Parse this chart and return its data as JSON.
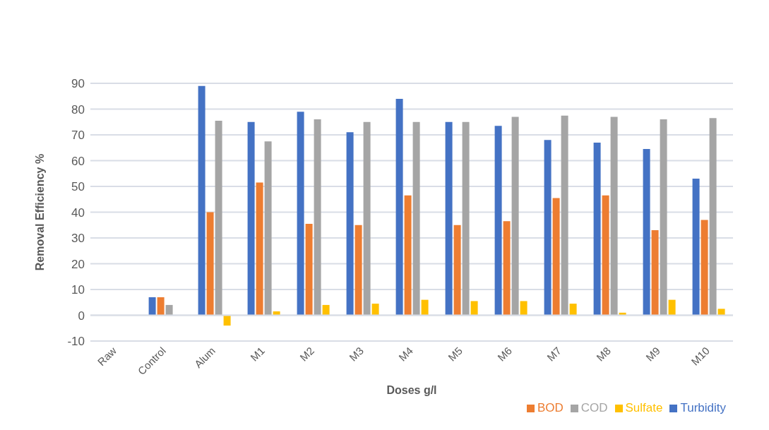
{
  "chart_data": {
    "type": "bar",
    "xlabel": "Doses g/l",
    "ylabel": "Removal Efficiency %",
    "categories": [
      "Raw",
      "Control",
      "Alum",
      "M1",
      "M2",
      "M3",
      "M4",
      "M5",
      "M6",
      "M7",
      "M8",
      "M9",
      "M10"
    ],
    "series": [
      {
        "name": "Turbidity",
        "color": "#4472c4",
        "values": [
          0,
          7,
          89,
          75,
          79,
          71,
          84,
          75,
          73.5,
          68,
          67,
          64.5,
          53
        ]
      },
      {
        "name": "BOD",
        "color": "#ed7d31",
        "values": [
          0,
          7,
          40,
          51.5,
          35.5,
          35,
          46.5,
          35,
          36.5,
          45.5,
          46.5,
          33,
          37
        ]
      },
      {
        "name": "COD",
        "color": "#a5a5a5",
        "values": [
          0,
          4,
          75.5,
          67.5,
          76,
          75,
          75,
          75,
          77,
          77.5,
          77,
          76,
          76.5
        ]
      },
      {
        "name": "Sulfate",
        "color": "#ffc000",
        "values": [
          0,
          0,
          -4,
          1.5,
          4,
          4.5,
          6,
          5.5,
          5.5,
          4.5,
          1,
          6,
          2.5
        ]
      }
    ],
    "ylim": [
      -10,
      90
    ],
    "yticks": [
      -10,
      0,
      10,
      20,
      30,
      40,
      50,
      60,
      70,
      80,
      90
    ],
    "grid": "y",
    "legend": "bottom right"
  }
}
